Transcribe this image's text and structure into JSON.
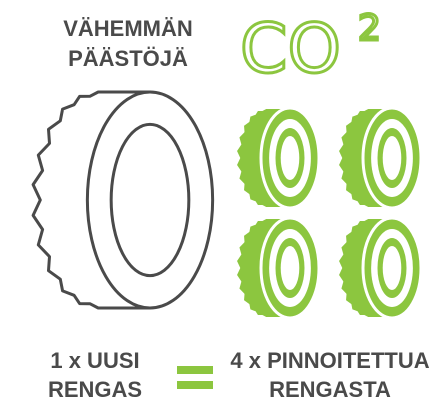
{
  "header": {
    "lines": [
      "VÄHEMMÄN",
      "PÄÄSTÖJÄ"
    ]
  },
  "co2": {
    "base": "CO",
    "superscript": "2"
  },
  "left": {
    "lines": [
      "1 x UUSI",
      "RENGAS"
    ]
  },
  "right": {
    "lines": [
      "4 x PINNOITETTUA",
      "RENGASTA"
    ]
  }
}
